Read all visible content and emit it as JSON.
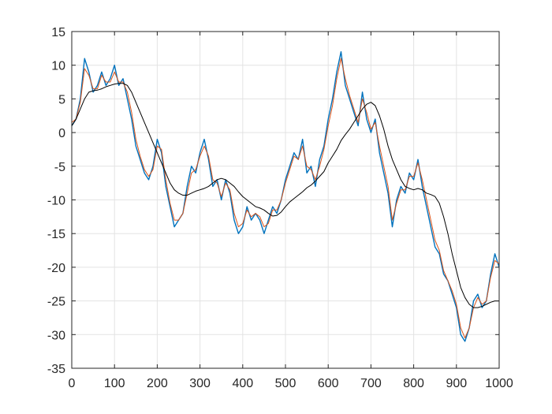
{
  "chart_data": {
    "type": "line",
    "title": "",
    "xlabel": "",
    "ylabel": "",
    "xlim": [
      0,
      1000
    ],
    "ylim": [
      -35,
      15
    ],
    "grid": true,
    "legend": "none",
    "x_ticks": [
      0,
      100,
      200,
      300,
      400,
      500,
      600,
      700,
      800,
      900,
      1000
    ],
    "y_ticks": [
      15,
      10,
      5,
      0,
      -5,
      -10,
      -15,
      -20,
      -25,
      -30,
      -35
    ],
    "x_tick_labels": [
      "0",
      "100",
      "200",
      "300",
      "400",
      "500",
      "600",
      "700",
      "800",
      "900",
      "1000"
    ],
    "y_tick_labels": [
      "15",
      "10",
      "5",
      "0",
      "-5",
      "-10",
      "-15",
      "-20",
      "-25",
      "-30",
      "-35"
    ],
    "series": [
      {
        "color": "#0072BD",
        "x": [
          0,
          10,
          20,
          30,
          40,
          50,
          60,
          70,
          80,
          90,
          100,
          110,
          120,
          130,
          140,
          150,
          160,
          170,
          180,
          190,
          200,
          210,
          220,
          230,
          240,
          250,
          260,
          270,
          280,
          290,
          300,
          310,
          320,
          330,
          340,
          350,
          360,
          370,
          380,
          390,
          400,
          410,
          420,
          430,
          440,
          450,
          460,
          470,
          480,
          490,
          500,
          510,
          520,
          530,
          540,
          550,
          560,
          570,
          580,
          590,
          600,
          610,
          620,
          630,
          640,
          650,
          660,
          670,
          680,
          690,
          700,
          710,
          720,
          730,
          740,
          750,
          760,
          770,
          780,
          790,
          800,
          810,
          820,
          830,
          840,
          850,
          860,
          870,
          880,
          890,
          900,
          910,
          920,
          930,
          940,
          950,
          960,
          970,
          980,
          990,
          1000
        ],
        "y": [
          1,
          2,
          5,
          11,
          9,
          6,
          7,
          9,
          7,
          8,
          10,
          7,
          8,
          5,
          2,
          -2,
          -4,
          -6,
          -7,
          -5,
          -1,
          -3,
          -8,
          -11,
          -14,
          -13,
          -12,
          -8,
          -5,
          -6,
          -3,
          -1,
          -4,
          -8,
          -7,
          -10,
          -7,
          -9,
          -13,
          -15,
          -14,
          -11,
          -13,
          -12,
          -13,
          -15,
          -13,
          -11,
          -12,
          -10,
          -7,
          -5,
          -3,
          -4,
          -1,
          -6,
          -5,
          -8,
          -4,
          -2,
          2,
          5,
          9,
          12,
          7,
          5,
          3,
          1,
          6,
          2,
          0,
          2,
          -3,
          -6,
          -9,
          -14,
          -10,
          -8,
          -9,
          -6,
          -7,
          -4,
          -8,
          -11,
          -14,
          -17,
          -18,
          -21,
          -22,
          -24,
          -26,
          -30,
          -31,
          -29,
          -25,
          -24,
          -26,
          -25,
          -21,
          -18,
          -20
        ]
      },
      {
        "color": "#D95319",
        "x": [
          0,
          10,
          20,
          30,
          40,
          50,
          60,
          70,
          80,
          90,
          100,
          110,
          120,
          130,
          140,
          150,
          160,
          170,
          180,
          190,
          200,
          210,
          220,
          230,
          240,
          250,
          260,
          270,
          280,
          290,
          300,
          310,
          320,
          330,
          340,
          350,
          360,
          370,
          380,
          390,
          400,
          410,
          420,
          430,
          440,
          450,
          460,
          470,
          480,
          490,
          500,
          510,
          520,
          530,
          540,
          550,
          560,
          570,
          580,
          590,
          600,
          610,
          620,
          630,
          640,
          650,
          660,
          670,
          680,
          690,
          700,
          710,
          720,
          730,
          740,
          750,
          760,
          770,
          780,
          790,
          800,
          810,
          820,
          830,
          840,
          850,
          860,
          870,
          880,
          890,
          900,
          910,
          920,
          930,
          940,
          950,
          960,
          970,
          980,
          990,
          1000
        ],
        "y": [
          1.5,
          2,
          4.5,
          9.5,
          8.5,
          6.5,
          6.5,
          8.5,
          7.5,
          7.5,
          9,
          7.5,
          7.5,
          6,
          3,
          -1,
          -3.5,
          -5.5,
          -6.5,
          -5.5,
          -2,
          -2.5,
          -7,
          -10.5,
          -13,
          -13,
          -12,
          -9,
          -6,
          -5.5,
          -3.5,
          -2,
          -3.5,
          -7,
          -7.5,
          -9.5,
          -7.5,
          -8.5,
          -12,
          -14,
          -13.5,
          -11.5,
          -12.5,
          -12,
          -12.5,
          -14,
          -13.5,
          -11.5,
          -11.5,
          -10,
          -7.5,
          -5.5,
          -3.5,
          -4,
          -2,
          -5,
          -5.5,
          -7,
          -5,
          -2.5,
          1,
          4,
          8,
          11,
          8,
          5.5,
          3.5,
          1.5,
          5,
          3,
          0.5,
          1.5,
          -2,
          -5,
          -8,
          -13,
          -10.5,
          -8.5,
          -8.5,
          -6.5,
          -6.5,
          -4.5,
          -7,
          -10,
          -13,
          -16,
          -17.5,
          -20.5,
          -22,
          -23.5,
          -25.5,
          -29,
          -30.5,
          -29,
          -26,
          -24.5,
          -25.5,
          -25,
          -21.5,
          -19,
          -19.5
        ]
      },
      {
        "color": "#000000",
        "x": [
          0,
          10,
          20,
          30,
          40,
          50,
          60,
          70,
          80,
          90,
          100,
          110,
          120,
          130,
          140,
          150,
          160,
          170,
          180,
          190,
          200,
          210,
          220,
          230,
          240,
          250,
          260,
          270,
          280,
          290,
          300,
          310,
          320,
          330,
          340,
          350,
          360,
          370,
          380,
          390,
          400,
          410,
          420,
          430,
          440,
          450,
          460,
          470,
          480,
          490,
          500,
          510,
          520,
          530,
          540,
          550,
          560,
          570,
          580,
          590,
          600,
          610,
          620,
          630,
          640,
          650,
          660,
          670,
          680,
          690,
          700,
          710,
          720,
          730,
          740,
          750,
          760,
          770,
          780,
          790,
          800,
          810,
          820,
          830,
          840,
          850,
          860,
          870,
          880,
          890,
          900,
          910,
          920,
          930,
          940,
          950,
          960,
          970,
          980,
          990,
          1000
        ],
        "y": [
          1,
          2,
          3.5,
          5,
          6,
          6.2,
          6.3,
          6.5,
          6.8,
          7,
          7.2,
          7.3,
          7.3,
          7,
          6,
          4.5,
          3,
          1.5,
          0,
          -1.5,
          -3,
          -4.5,
          -6,
          -7.5,
          -8.5,
          -9,
          -9.3,
          -9.3,
          -9,
          -8.7,
          -8.5,
          -8.3,
          -8,
          -7.5,
          -7,
          -6.8,
          -7,
          -7.5,
          -8,
          -8.8,
          -9.5,
          -10,
          -10.5,
          -11,
          -11.2,
          -11.5,
          -12,
          -12.4,
          -12.3,
          -11.8,
          -11,
          -10.3,
          -9.8,
          -9.3,
          -8.8,
          -8.2,
          -7.8,
          -7.2,
          -6.5,
          -5.8,
          -4.5,
          -3.5,
          -2.5,
          -1.2,
          -0.3,
          0.5,
          1.5,
          2.5,
          3.5,
          4.2,
          4.5,
          4,
          2.5,
          0.5,
          -2,
          -4,
          -5.5,
          -7,
          -8,
          -8.3,
          -8.5,
          -8.3,
          -8.5,
          -9,
          -9.2,
          -9.5,
          -10.5,
          -12.5,
          -15,
          -18,
          -20.5,
          -23,
          -24.5,
          -25.5,
          -26,
          -26,
          -25.8,
          -25.5,
          -25.2,
          -25,
          -25
        ]
      }
    ]
  }
}
